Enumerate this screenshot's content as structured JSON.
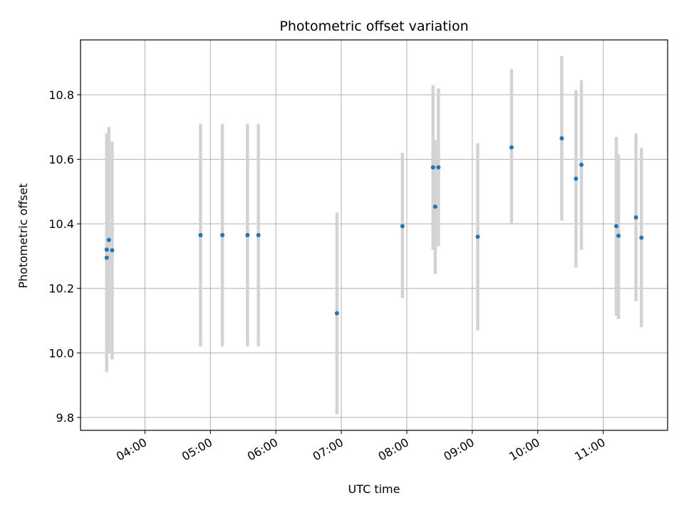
{
  "chart_data": {
    "type": "scatter",
    "title": "Photometric offset variation",
    "xlabel": "UTC time",
    "ylabel": "Photometric offset",
    "x_ticks": [
      "04:00",
      "05:00",
      "06:00",
      "07:00",
      "08:00",
      "09:00",
      "10:00",
      "11:00"
    ],
    "y_ticks": [
      "9.8",
      "10.0",
      "10.2",
      "10.4",
      "10.6",
      "10.8"
    ],
    "xlim": [
      "03:01",
      "11:59"
    ],
    "ylim": [
      9.76,
      10.97
    ],
    "grid": true,
    "errorbar_color": "#d3d3d3",
    "point_color": "#1f77b4",
    "points": [
      {
        "x": "03:25",
        "y": 10.32,
        "err_low": 9.98,
        "err_high": 10.68
      },
      {
        "x": "03:25",
        "y": 10.295,
        "err_low": 9.94,
        "err_high": 10.65
      },
      {
        "x": "03:27",
        "y": 10.35,
        "err_low": 10.0,
        "err_high": 10.7
      },
      {
        "x": "03:30",
        "y": 10.318,
        "err_low": 9.98,
        "err_high": 10.655
      },
      {
        "x": "04:51",
        "y": 10.365,
        "err_low": 10.02,
        "err_high": 10.71
      },
      {
        "x": "05:11",
        "y": 10.365,
        "err_low": 10.02,
        "err_high": 10.71
      },
      {
        "x": "05:34",
        "y": 10.365,
        "err_low": 10.02,
        "err_high": 10.71
      },
      {
        "x": "05:44",
        "y": 10.365,
        "err_low": 10.02,
        "err_high": 10.71
      },
      {
        "x": "06:56",
        "y": 10.123,
        "err_low": 9.81,
        "err_high": 10.435
      },
      {
        "x": "07:56",
        "y": 10.393,
        "err_low": 10.17,
        "err_high": 10.62
      },
      {
        "x": "08:24",
        "y": 10.575,
        "err_low": 10.32,
        "err_high": 10.83
      },
      {
        "x": "08:26",
        "y": 10.453,
        "err_low": 10.245,
        "err_high": 10.66
      },
      {
        "x": "08:29",
        "y": 10.575,
        "err_low": 10.33,
        "err_high": 10.82
      },
      {
        "x": "09:05",
        "y": 10.36,
        "err_low": 10.07,
        "err_high": 10.65
      },
      {
        "x": "09:36",
        "y": 10.637,
        "err_low": 10.4,
        "err_high": 10.88
      },
      {
        "x": "10:22",
        "y": 10.665,
        "err_low": 10.41,
        "err_high": 10.92
      },
      {
        "x": "10:35",
        "y": 10.54,
        "err_low": 10.265,
        "err_high": 10.815
      },
      {
        "x": "10:40",
        "y": 10.583,
        "err_low": 10.32,
        "err_high": 10.845
      },
      {
        "x": "11:12",
        "y": 10.393,
        "err_low": 10.115,
        "err_high": 10.67
      },
      {
        "x": "11:14",
        "y": 10.363,
        "err_low": 10.105,
        "err_high": 10.615
      },
      {
        "x": "11:30",
        "y": 10.42,
        "err_low": 10.16,
        "err_high": 10.68
      },
      {
        "x": "11:35",
        "y": 10.357,
        "err_low": 10.08,
        "err_high": 10.635
      }
    ]
  }
}
